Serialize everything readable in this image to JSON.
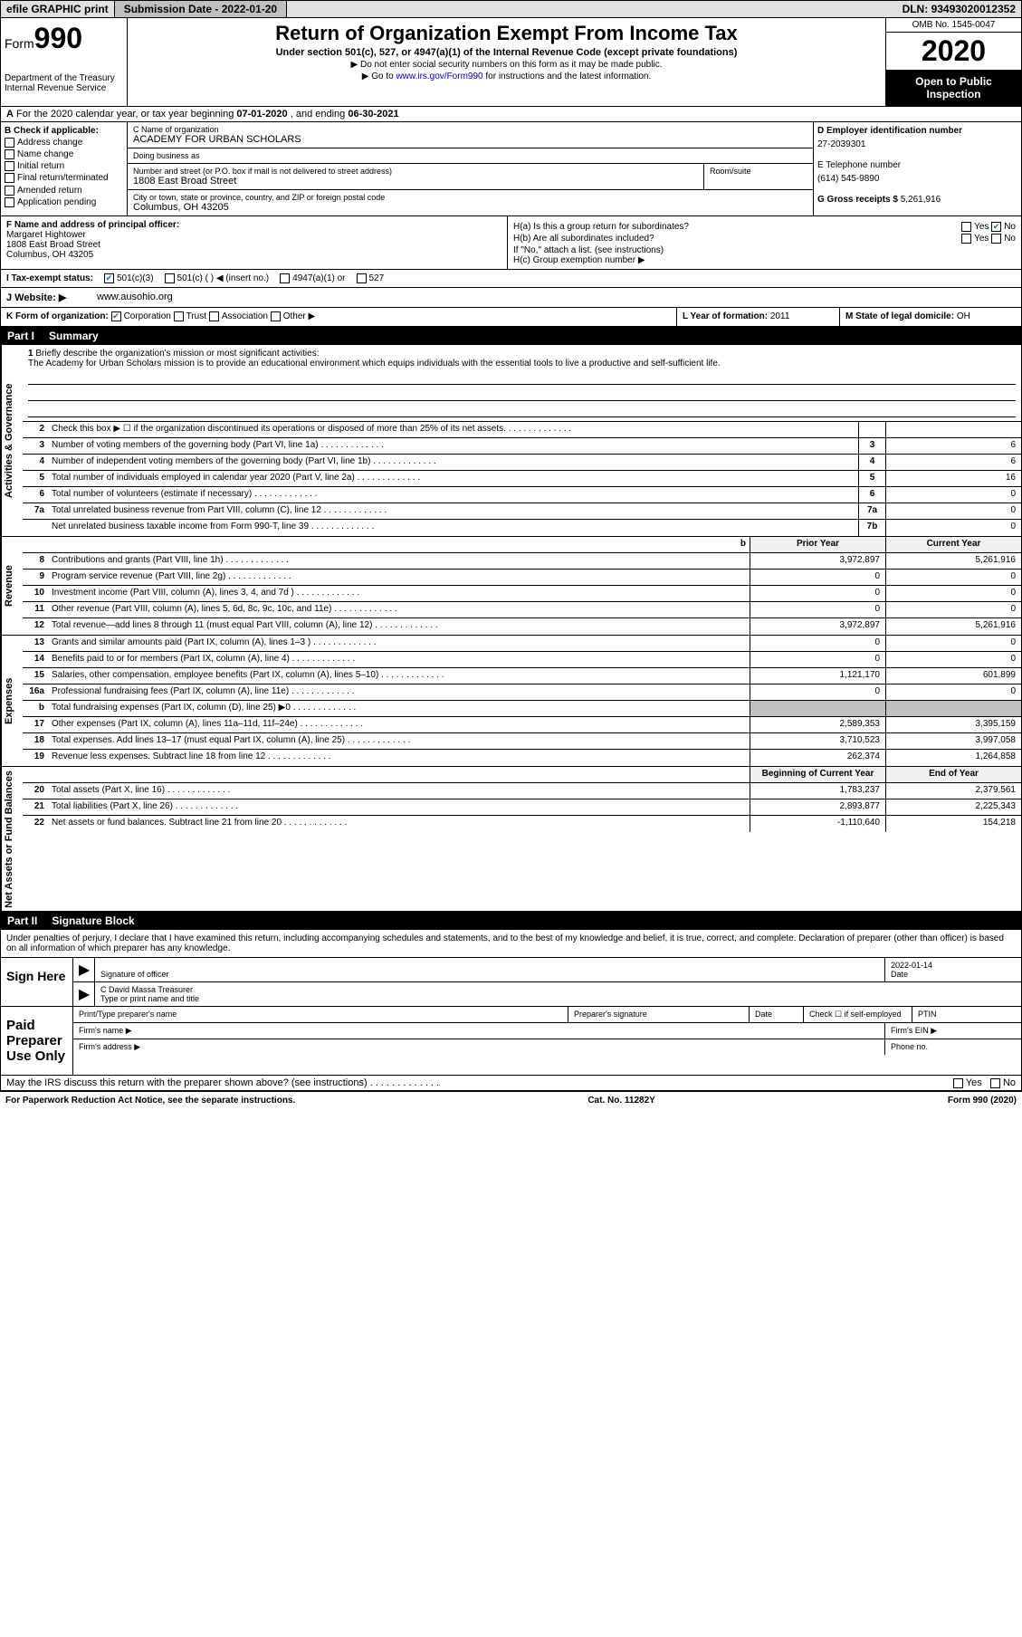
{
  "topbar": {
    "efile": "efile GRAPHIC print",
    "subdate_label": "Submission Date - ",
    "subdate": "2022-01-20",
    "dln_label": "DLN: ",
    "dln": "93493020012352"
  },
  "header": {
    "form_label": "Form",
    "form_no": "990",
    "dept": "Department of the Treasury\nInternal Revenue Service",
    "title": "Return of Organization Exempt From Income Tax",
    "subtitle": "Under section 501(c), 527, or 4947(a)(1) of the Internal Revenue Code (except private foundations)",
    "note1": "▶ Do not enter social security numbers on this form as it may be made public.",
    "note2_pre": "▶ Go to ",
    "note2_link": "www.irs.gov/Form990",
    "note2_post": " for instructions and the latest information.",
    "omb": "OMB No. 1545-0047",
    "year": "2020",
    "inspect": "Open to Public Inspection"
  },
  "row_a": {
    "prefix": "A",
    "text": "For the 2020 calendar year, or tax year beginning ",
    "begin": "07-01-2020",
    "mid": " , and ending ",
    "end": "06-30-2021"
  },
  "box_b": {
    "label": "B Check if applicable:",
    "opts": [
      "Address change",
      "Name change",
      "Initial return",
      "Final return/terminated",
      "Amended return",
      "Application pending"
    ]
  },
  "box_c": {
    "name_label": "C Name of organization",
    "name": "ACADEMY FOR URBAN SCHOLARS",
    "dba_label": "Doing business as",
    "dba": "",
    "addr_label": "Number and street (or P.O. box if mail is not delivered to street address)",
    "room_label": "Room/suite",
    "addr": "1808 East Broad Street",
    "city_label": "City or town, state or province, country, and ZIP or foreign postal code",
    "city": "Columbus, OH  43205"
  },
  "box_deg": {
    "d_label": "D Employer identification number",
    "d_val": "27-2039301",
    "e_label": "E Telephone number",
    "e_val": "(614) 545-9890",
    "g_label": "G Gross receipts $ ",
    "g_val": "5,261,916"
  },
  "box_f": {
    "label": "F  Name and address of principal officer:",
    "name": "Margaret Hightower",
    "addr1": "1808 East Broad Street",
    "addr2": "Columbus, OH  43205"
  },
  "box_h": {
    "ha_label": "H(a)  Is this a group return for subordinates?",
    "ha_yes": "Yes",
    "ha_no": "No",
    "hb_label": "H(b)  Are all subordinates included?",
    "hb_note": "If \"No,\" attach a list. (see instructions)",
    "hc_label": "H(c)  Group exemption number ▶"
  },
  "row_i": {
    "label": "I   Tax-exempt status:",
    "o1": "501(c)(3)",
    "o2": "501(c) (   ) ◀ (insert no.)",
    "o3": "4947(a)(1) or",
    "o4": "527"
  },
  "row_j": {
    "label": "J   Website: ▶",
    "val": "www.ausohio.org"
  },
  "row_klm": {
    "k_label": "K Form of organization:",
    "k_opts": [
      "Corporation",
      "Trust",
      "Association",
      "Other ▶"
    ],
    "l_label": "L Year of formation: ",
    "l_val": "2011",
    "m_label": "M State of legal domicile: ",
    "m_val": "OH"
  },
  "part1": {
    "num": "Part I",
    "title": "Summary"
  },
  "mission": {
    "num": "1",
    "label": "Briefly describe the organization's mission or most significant activities:",
    "text": "The Academy for Urban Scholars mission is to provide an educational environment which equips individuals with the essential tools to live a productive and self-sufficient life."
  },
  "gov_rows": [
    {
      "n": "2",
      "d": "Check this box ▶ ☐  if the organization discontinued its operations or disposed of more than 25% of its net assets.",
      "b": "",
      "v": ""
    },
    {
      "n": "3",
      "d": "Number of voting members of the governing body (Part VI, line 1a)",
      "b": "3",
      "v": "6"
    },
    {
      "n": "4",
      "d": "Number of independent voting members of the governing body (Part VI, line 1b)",
      "b": "4",
      "v": "6"
    },
    {
      "n": "5",
      "d": "Total number of individuals employed in calendar year 2020 (Part V, line 2a)",
      "b": "5",
      "v": "16"
    },
    {
      "n": "6",
      "d": "Total number of volunteers (estimate if necessary)",
      "b": "6",
      "v": "0"
    },
    {
      "n": "7a",
      "d": "Total unrelated business revenue from Part VIII, column (C), line 12",
      "b": "7a",
      "v": "0"
    },
    {
      "n": "",
      "d": "Net unrelated business taxable income from Form 990-T, line 39",
      "b": "7b",
      "v": "0"
    }
  ],
  "rev_hdr": {
    "py": "Prior Year",
    "cy": "Current Year"
  },
  "rev_rows": [
    {
      "n": "8",
      "d": "Contributions and grants (Part VIII, line 1h)",
      "p": "3,972,897",
      "c": "5,261,916"
    },
    {
      "n": "9",
      "d": "Program service revenue (Part VIII, line 2g)",
      "p": "0",
      "c": "0"
    },
    {
      "n": "10",
      "d": "Investment income (Part VIII, column (A), lines 3, 4, and 7d )",
      "p": "0",
      "c": "0"
    },
    {
      "n": "11",
      "d": "Other revenue (Part VIII, column (A), lines 5, 6d, 8c, 9c, 10c, and 11e)",
      "p": "0",
      "c": "0"
    },
    {
      "n": "12",
      "d": "Total revenue—add lines 8 through 11 (must equal Part VIII, column (A), line 12)",
      "p": "3,972,897",
      "c": "5,261,916"
    }
  ],
  "exp_rows": [
    {
      "n": "13",
      "d": "Grants and similar amounts paid (Part IX, column (A), lines 1–3 )",
      "p": "0",
      "c": "0"
    },
    {
      "n": "14",
      "d": "Benefits paid to or for members (Part IX, column (A), line 4)",
      "p": "0",
      "c": "0"
    },
    {
      "n": "15",
      "d": "Salaries, other compensation, employee benefits (Part IX, column (A), lines 5–10)",
      "p": "1,121,170",
      "c": "601,899"
    },
    {
      "n": "16a",
      "d": "Professional fundraising fees (Part IX, column (A), line 11e)",
      "p": "0",
      "c": "0"
    },
    {
      "n": "b",
      "d": "Total fundraising expenses (Part IX, column (D), line 25) ▶0",
      "p": "grey",
      "c": "grey"
    },
    {
      "n": "17",
      "d": "Other expenses (Part IX, column (A), lines 11a–11d, 11f–24e)",
      "p": "2,589,353",
      "c": "3,395,159"
    },
    {
      "n": "18",
      "d": "Total expenses. Add lines 13–17 (must equal Part IX, column (A), line 25)",
      "p": "3,710,523",
      "c": "3,997,058"
    },
    {
      "n": "19",
      "d": "Revenue less expenses. Subtract line 18 from line 12",
      "p": "262,374",
      "c": "1,264,858"
    }
  ],
  "net_hdr": {
    "py": "Beginning of Current Year",
    "cy": "End of Year"
  },
  "net_rows": [
    {
      "n": "20",
      "d": "Total assets (Part X, line 16)",
      "p": "1,783,237",
      "c": "2,379,561"
    },
    {
      "n": "21",
      "d": "Total liabilities (Part X, line 26)",
      "p": "2,893,877",
      "c": "2,225,343"
    },
    {
      "n": "22",
      "d": "Net assets or fund balances. Subtract line 21 from line 20",
      "p": "-1,110,640",
      "c": "154,218"
    }
  ],
  "part2": {
    "num": "Part II",
    "title": "Signature Block"
  },
  "sig_decl": "Under penalties of perjury, I declare that I have examined this return, including accompanying schedules and statements, and to the best of my knowledge and belief, it is true, correct, and complete. Declaration of preparer (other than officer) is based on all information of which preparer has any knowledge.",
  "sign_here": {
    "label": "Sign Here",
    "sig_label": "Signature of officer",
    "date_label": "Date",
    "date": "2022-01-14",
    "name": "C David Massa  Treasurer",
    "name_label": "Type or print name and title"
  },
  "paid_prep": {
    "label": "Paid Preparer Use Only",
    "r1": [
      "Print/Type preparer's name",
      "Preparer's signature",
      "Date",
      "Check ☐ if self-employed",
      "PTIN"
    ],
    "r2a": "Firm's name   ▶",
    "r2b": "Firm's EIN ▶",
    "r3a": "Firm's address ▶",
    "r3b": "Phone no."
  },
  "discuss": {
    "q": "May the IRS discuss this return with the preparer shown above? (see instructions)",
    "yes": "Yes",
    "no": "No"
  },
  "footer": {
    "left": "For Paperwork Reduction Act Notice, see the separate instructions.",
    "mid": "Cat. No. 11282Y",
    "right": "Form 990 (2020)"
  },
  "vtabs": {
    "gov": "Activities & Governance",
    "rev": "Revenue",
    "exp": "Expenses",
    "net": "Net Assets or Fund Balances"
  }
}
